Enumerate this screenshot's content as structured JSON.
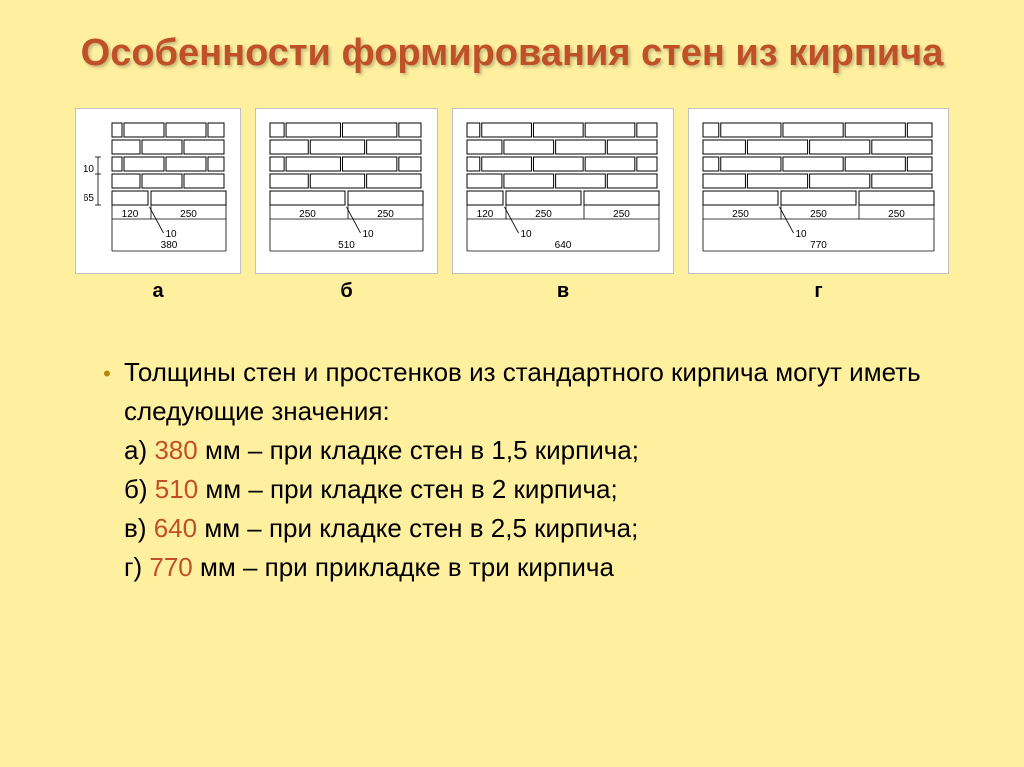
{
  "title": "Особенности формирования стен из кирпича",
  "diagrams": {
    "items": [
      {
        "letter": "а",
        "total": "380",
        "segs": [
          "120",
          "250"
        ],
        "gap": "10",
        "h1": "10",
        "h2": "65",
        "show_vdim": true,
        "cols": 2
      },
      {
        "letter": "б",
        "total": "510",
        "segs": [
          "250",
          "250"
        ],
        "gap": "10",
        "h1": "10",
        "h2": "65",
        "show_vdim": false,
        "cols": 2
      },
      {
        "letter": "в",
        "total": "640",
        "segs": [
          "120",
          "250",
          "250"
        ],
        "gap": "10",
        "h1": "10",
        "h2": "65",
        "show_vdim": false,
        "cols": 3
      },
      {
        "letter": "г",
        "total": "770",
        "segs": [
          "250",
          "250",
          "250"
        ],
        "gap": "10",
        "h1": "10",
        "h2": "65",
        "show_vdim": false,
        "cols": 3
      }
    ]
  },
  "intro": "Толщины стен и простенков из стандартного кирпича могут иметь следующие значения:",
  "lines": [
    {
      "p": "а) ",
      "v": "380",
      "s": " мм – при кладке стен в 1,5 кирпича;"
    },
    {
      "p": "б) ",
      "v": "510",
      "s": " мм – при кладке стен в 2 кирпича;"
    },
    {
      "p": "в) ",
      "v": "640",
      "s": " мм – при кладке стен в 2,5 кирпича;"
    },
    {
      "p": "г) ",
      "v": "770",
      "s": " мм – при прикладке в три кирпича"
    }
  ],
  "colors": {
    "bg": "#fff0a0",
    "accent": "#c05028"
  }
}
